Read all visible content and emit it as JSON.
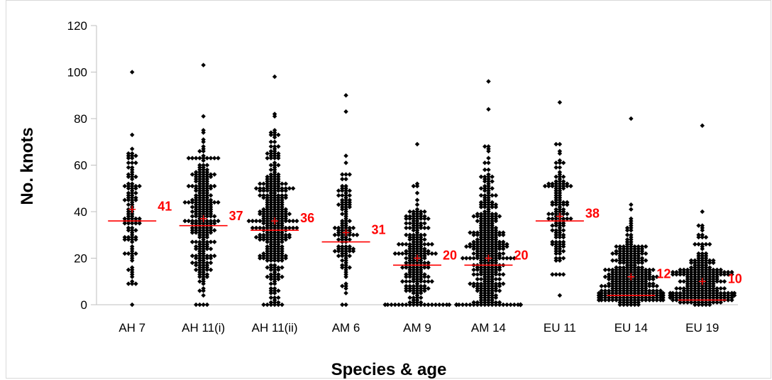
{
  "chart_data": {
    "type": "scatter",
    "title": "",
    "xlabel": "Species & age",
    "ylabel": "No. knots",
    "ylim": [
      0,
      120
    ],
    "yticks": [
      0,
      20,
      40,
      60,
      80,
      100,
      120
    ],
    "grid": false,
    "categories": [
      "AH 7",
      "AH 11(i)",
      "AH 11(ii)",
      "AM 6",
      "AM 9",
      "AM 14",
      "EU 11",
      "EU 14",
      "EU 19"
    ],
    "medians": [
      36,
      34,
      32,
      27,
      17,
      17,
      36,
      4,
      2
    ],
    "means": [
      41,
      37,
      36,
      31,
      20,
      20,
      38,
      12,
      10
    ],
    "mean_labels": [
      "41",
      "37",
      "36",
      "31",
      "20",
      "20",
      "38",
      "12",
      "10"
    ],
    "point_counts": [
      110,
      260,
      330,
      120,
      230,
      380,
      130,
      320,
      260
    ],
    "max_values": [
      100,
      103,
      98,
      90,
      69,
      96,
      87,
      80,
      77
    ],
    "colors": {
      "points": "#000000",
      "median_line": "#ff0000",
      "mean_marker": "#ff0000",
      "annotation": "#ff0000",
      "axis": "#bfbfbf"
    }
  }
}
